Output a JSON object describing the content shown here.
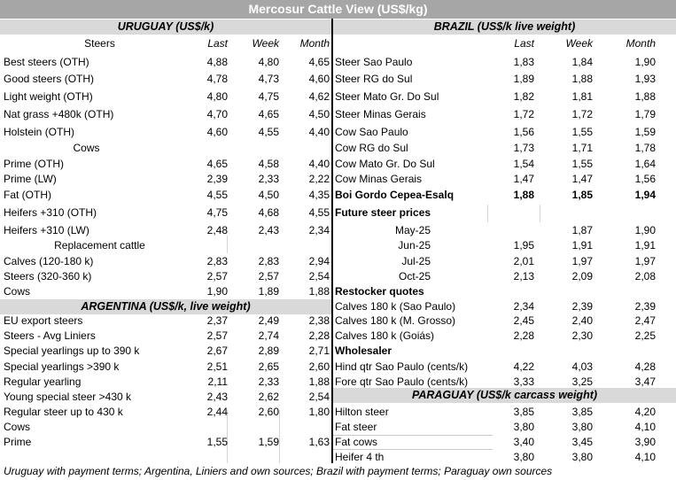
{
  "title": "Mercosur Cattle View (US$/kg)",
  "uruguay": {
    "header": "URUGUAY (US$/k)",
    "steers_label": "Steers",
    "cols": [
      "Last",
      "Week",
      "Month"
    ],
    "rows": [
      {
        "label": "Best steers (OTH)",
        "v": [
          "4,88",
          "4,80",
          "4,65"
        ]
      },
      {
        "label": "Good steers (OTH)",
        "v": [
          "4,78",
          "4,73",
          "4,60"
        ]
      },
      {
        "label": "Light weight (OTH)",
        "v": [
          "4,80",
          "4,75",
          "4,62"
        ]
      },
      {
        "label": "Nat grass +480k (OTH)",
        "v": [
          "4,70",
          "4,65",
          "4,50"
        ]
      },
      {
        "label": "Holstein (OTH)",
        "v": [
          "4,60",
          "4,55",
          "4,40"
        ]
      }
    ],
    "cows_label": "Cows",
    "cow_rows": [
      {
        "label": "Prime (OTH)",
        "v": [
          "4,65",
          "4,58",
          "4,40"
        ]
      },
      {
        "label": "Prime (LW)",
        "v": [
          "2,39",
          "2,33",
          "2,22"
        ]
      },
      {
        "label": "Fat (OTH)",
        "v": [
          "4,55",
          "4,50",
          "4,35"
        ]
      },
      {
        "label": "Heifers +310 (OTH)",
        "v": [
          "4,75",
          "4,68",
          "4,55"
        ]
      },
      {
        "label": "Heifers +310 (LW)",
        "v": [
          "2,48",
          "2,43",
          "2,34"
        ]
      }
    ],
    "replacement_label": "Replacement cattle",
    "rep_rows": [
      {
        "label": "Calves (120-180 k)",
        "v": [
          "2,83",
          "2,83",
          "2,94"
        ]
      },
      {
        "label": "Steers (320-360 k)",
        "v": [
          "2,57",
          "2,57",
          "2,54"
        ]
      },
      {
        "label": "Cows",
        "v": [
          "1,90",
          "1,89",
          "1,88"
        ]
      }
    ]
  },
  "argentina": {
    "header": "ARGENTINA (US$/k, live weight)",
    "rows": [
      {
        "label": "EU export steers",
        "v": [
          "2,37",
          "2,49",
          "2,38"
        ]
      },
      {
        "label": "Steers - Avg Liniers",
        "v": [
          "2,57",
          "2,74",
          "2,28"
        ]
      },
      {
        "label": "Special yearlings up to 390 k",
        "v": [
          "2,67",
          "2,89",
          "2,71"
        ]
      },
      {
        "label": "Special yearlings >390 k",
        "v": [
          "2,51",
          "2,65",
          "2,60"
        ]
      },
      {
        "label": "Regular yearling",
        "v": [
          "2,11",
          "2,33",
          "1,88"
        ]
      },
      {
        "label": "Young special steer >430 k",
        "v": [
          "2,43",
          "2,62",
          "2,54"
        ]
      },
      {
        "label": "Regular steer up to 430 k",
        "v": [
          "2,44",
          "2,60",
          "1,80"
        ]
      }
    ],
    "cows_label": "Cows",
    "prime": {
      "label": "Prime",
      "v": [
        "1,55",
        "1,59",
        "1,63"
      ]
    }
  },
  "brazil": {
    "header": "BRAZIL  (US$/k live weight)",
    "cols": [
      "Last",
      "Week",
      "Month"
    ],
    "rows": [
      {
        "label": "Steer Sao Paulo",
        "v": [
          "1,83",
          "1,84",
          "1,90"
        ]
      },
      {
        "label": "Steer RG do Sul",
        "v": [
          "1,89",
          "1,88",
          "1,93"
        ]
      },
      {
        "label": "Steer Mato Gr. Do Sul",
        "v": [
          "1,82",
          "1,81",
          "1,88"
        ]
      },
      {
        "label": "Steer Minas Gerais",
        "v": [
          "1,72",
          "1,72",
          "1,79"
        ]
      },
      {
        "label": "Cow Sao Paulo",
        "v": [
          "1,56",
          "1,55",
          "1,59"
        ]
      },
      {
        "label": "Cow RG do Sul",
        "v": [
          "1,73",
          "1,71",
          "1,78"
        ]
      },
      {
        "label": "Cow Mato Gr. Do Sul",
        "v": [
          "1,54",
          "1,55",
          "1,64"
        ]
      },
      {
        "label": "Cow Minas Gerais",
        "v": [
          "1,47",
          "1,47",
          "1,56"
        ]
      }
    ],
    "boi": {
      "label": "Boi Gordo Cepea-Esalq",
      "v": [
        "1,88",
        "1,85",
        "1,94"
      ]
    },
    "future_label": "Future steer prices",
    "future_rows": [
      {
        "label": "May-25",
        "v": [
          "",
          "1,87",
          "1,90"
        ]
      },
      {
        "label": "Jun-25",
        "v": [
          "1,95",
          "1,91",
          "1,91"
        ]
      },
      {
        "label": "Jul-25",
        "v": [
          "2,01",
          "1,97",
          "1,97"
        ]
      },
      {
        "label": "Oct-25",
        "v": [
          "2,13",
          "2,09",
          "2,08"
        ]
      }
    ],
    "restocker_label": "Restocker quotes",
    "restocker_rows": [
      {
        "label": "Calves 180 k (Sao Paulo)",
        "v": [
          "2,34",
          "2,39",
          "2,39"
        ]
      },
      {
        "label": "Calves 180 k (M. Grosso)",
        "v": [
          "2,45",
          "2,40",
          "2,47"
        ]
      },
      {
        "label": "Calves 180 k (Goiás)",
        "v": [
          "2,28",
          "2,30",
          "2,25"
        ]
      }
    ],
    "wholesaler_label": "Wholesaler",
    "wholesaler_rows": [
      {
        "label": "Hind qtr Sao Paulo (cents/k)",
        "v": [
          "4,22",
          "4,03",
          "4,28"
        ]
      },
      {
        "label": "Fore qtr Sao Paulo (cents/k)",
        "v": [
          "3,33",
          "3,25",
          "3,47"
        ]
      }
    ]
  },
  "paraguay": {
    "header": "PARAGUAY  (US$/k carcass weight)",
    "rows": [
      {
        "label": "Hilton steer",
        "v": [
          "3,85",
          "3,85",
          "4,20"
        ]
      },
      {
        "label": "Fat steer",
        "v": [
          "3,80",
          "3,80",
          "4,10"
        ]
      },
      {
        "label": "Fat cows",
        "v": [
          "3,40",
          "3,45",
          "3,90"
        ]
      },
      {
        "label": "Heifer 4 th",
        "v": [
          "3,80",
          "3,80",
          "4,10"
        ]
      }
    ]
  },
  "footer": "Uruguay with payment terms; Argentina, Liniers and own sources; Brazil with payment terms; Paraguay own sources"
}
